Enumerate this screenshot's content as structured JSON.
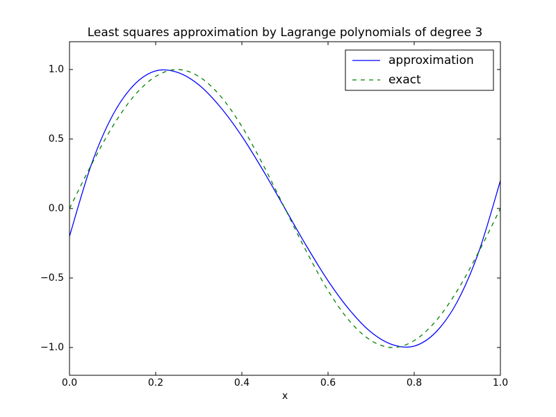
{
  "chart_data": {
    "type": "line",
    "title": "Least squares approximation by Lagrange polynomials of degree 3",
    "x_label": "x",
    "x": [
      0,
      0.05,
      0.1,
      0.15,
      0.2,
      0.25,
      0.3,
      0.35,
      0.4,
      0.45,
      0.5,
      0.55,
      0.6,
      0.65,
      0.7,
      0.75,
      0.8,
      0.85,
      0.9,
      0.95,
      1.0
    ],
    "series": [
      {
        "name": "approximation",
        "color": "#0000ff",
        "dash": "solid",
        "values": [
          -0.2,
          0.31,
          0.67,
          0.89,
          0.99,
          0.98,
          0.89,
          0.73,
          0.52,
          0.27,
          0,
          -0.27,
          -0.52,
          -0.73,
          -0.89,
          -0.98,
          -0.99,
          -0.89,
          -0.67,
          -0.31,
          0.2
        ]
      },
      {
        "name": "exact",
        "color": "#008000",
        "dash": "dashed",
        "values": [
          0,
          0.31,
          0.59,
          0.81,
          0.95,
          1.0,
          0.95,
          0.81,
          0.59,
          0.31,
          0,
          -0.31,
          -0.59,
          -0.81,
          -0.95,
          -1.0,
          -0.95,
          -0.81,
          -0.59,
          -0.31,
          0
        ]
      }
    ],
    "xlim": [
      0,
      1
    ],
    "xticks": [
      {
        "value": 0,
        "label": "0.0"
      },
      0.2,
      0.4,
      0.6,
      0.8,
      {
        "value": 1,
        "label": "1.0"
      }
    ],
    "ylim": [
      -1.2,
      1.2
    ],
    "yticks": [
      {
        "value": -1,
        "label": "−1.0"
      },
      {
        "value": -0.5,
        "label": "−0.5"
      },
      {
        "value": 0,
        "label": "0.0"
      },
      0.5,
      {
        "value": 1,
        "label": "1.0"
      }
    ],
    "grid": false,
    "legend": "upper right"
  }
}
